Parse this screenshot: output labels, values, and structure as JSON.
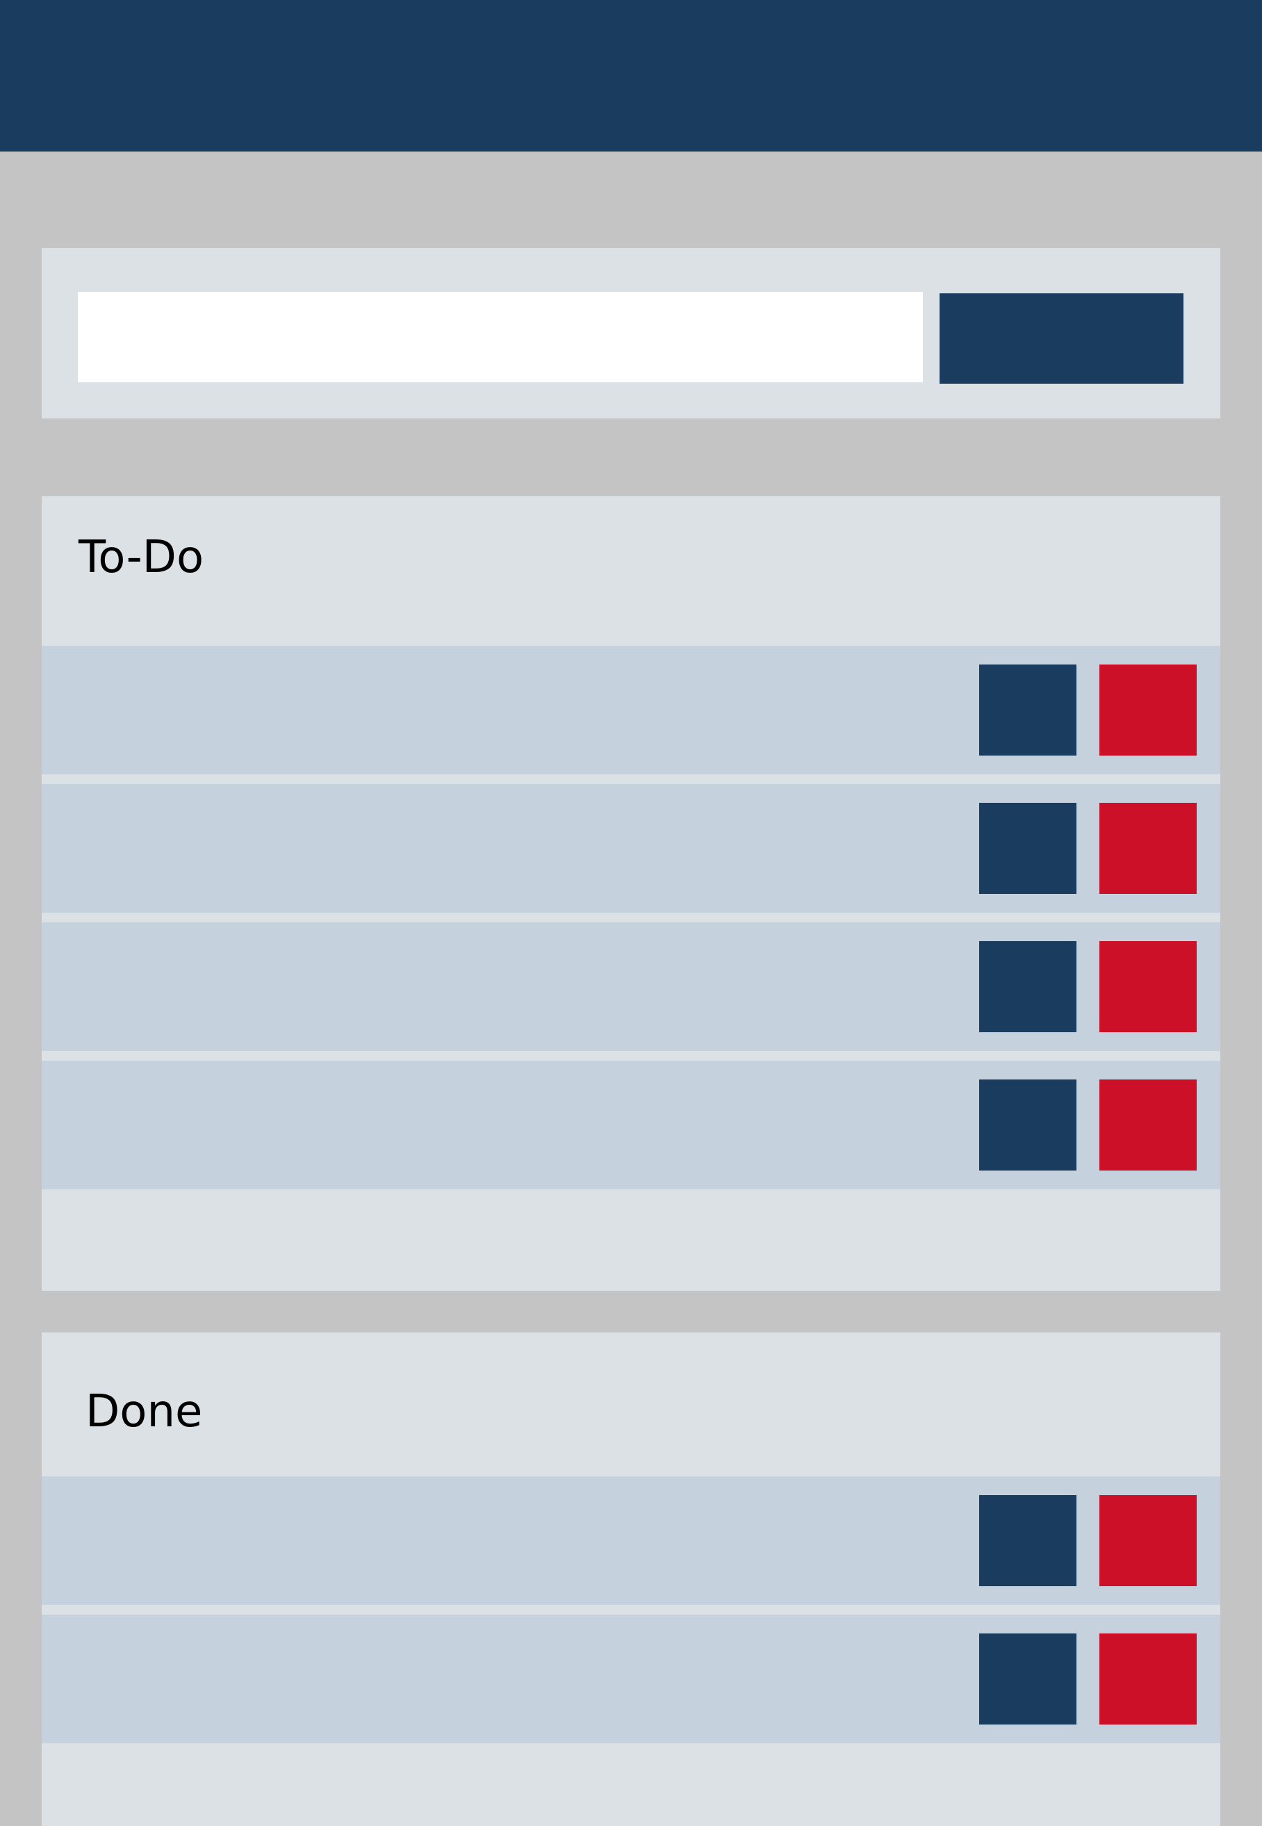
{
  "colors": {
    "header": "#193c5f",
    "page_background": "#c4c4c4",
    "panel_background": "#dce1e5",
    "row_background": "#c5d1dc",
    "primary_button": "#193c5f",
    "danger_button": "#cc1028"
  },
  "add_task": {
    "input_value": "",
    "button_label": ""
  },
  "todo": {
    "title": "To-Do",
    "items": [
      {
        "text": ""
      },
      {
        "text": ""
      },
      {
        "text": ""
      },
      {
        "text": ""
      }
    ]
  },
  "done": {
    "title": "Done",
    "items": [
      {
        "text": ""
      },
      {
        "text": ""
      }
    ]
  }
}
